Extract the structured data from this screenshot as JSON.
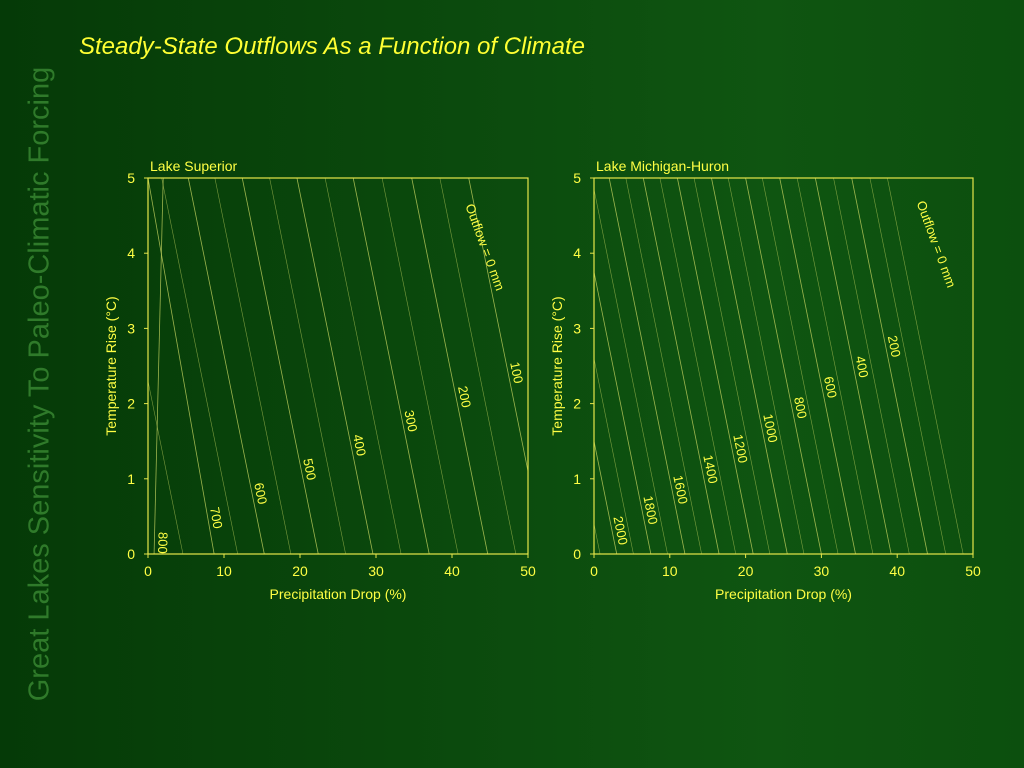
{
  "slide": {
    "title": "Steady-State Outflows As a Function of Climate",
    "side_title": "Great Lakes Sensitivity To Paleo-Climatic Forcing"
  },
  "colors": {
    "text": "#ffff44",
    "frame": "#e6e64a",
    "contour": "#b7c95a"
  },
  "chart_data": [
    {
      "type": "contour",
      "title": "Lake Superior",
      "xlabel": "Precipitation Drop (%)",
      "ylabel": "Temperature Rise (°C)",
      "xlim": [
        0,
        50
      ],
      "ylim": [
        0,
        5
      ],
      "xticks": [
        0,
        10,
        20,
        30,
        40,
        50
      ],
      "yticks": [
        0,
        1,
        2,
        3,
        4,
        5
      ],
      "contour_label": "Outflow = 0 mm",
      "contours": [
        {
          "label": "800",
          "x0": 0.8,
          "x1": 2.0
        },
        {
          "label": "700",
          "x0": 8.7,
          "x1": 0.0
        },
        {
          "label": "600",
          "x0": 15.3,
          "x1": 5.3
        },
        {
          "label": "500",
          "x0": 22.4,
          "x1": 12.4
        },
        {
          "label": "400",
          "x0": 29.6,
          "x1": 19.6
        },
        {
          "label": "300",
          "x0": 37.0,
          "x1": 27.0
        },
        {
          "label": "200",
          "x0": 44.7,
          "x1": 34.7
        },
        {
          "label": "100",
          "x0": 52.2,
          "x1": 42.2
        }
      ],
      "unlabeled_contours": [
        {
          "x0": 4.6,
          "x1": -5.4
        },
        {
          "x0": 11.8,
          "x1": 1.8
        },
        {
          "x0": 18.8,
          "x1": 8.8
        },
        {
          "x0": 26.0,
          "x1": 16.0
        },
        {
          "x0": 33.3,
          "x1": 23.3
        },
        {
          "x0": 40.8,
          "x1": 30.8
        },
        {
          "x0": 48.4,
          "x1": 38.4
        }
      ]
    },
    {
      "type": "contour",
      "title": "Lake Michigan-Huron",
      "xlabel": "Precipitation Drop (%)",
      "ylabel": "Temperature Rise (°C)",
      "xlim": [
        0,
        50
      ],
      "ylim": [
        0,
        5
      ],
      "xticks": [
        0,
        10,
        20,
        30,
        40,
        50
      ],
      "yticks": [
        0,
        1,
        2,
        3,
        4,
        5
      ],
      "contour_label": "Outflow = 0 mm",
      "contours": [
        {
          "label": "2000",
          "x0": 3.0,
          "x1": -7.0
        },
        {
          "label": "1800",
          "x0": 7.5,
          "x1": -2.5
        },
        {
          "label": "1600",
          "x0": 12.0,
          "x1": 2.0
        },
        {
          "label": "1400",
          "x0": 16.5,
          "x1": 6.5
        },
        {
          "label": "1200",
          "x0": 21.0,
          "x1": 11.0
        },
        {
          "label": "1000",
          "x0": 25.5,
          "x1": 15.5
        },
        {
          "label": "800",
          "x0": 30.0,
          "x1": 20.0
        },
        {
          "label": "600",
          "x0": 34.5,
          "x1": 24.5
        },
        {
          "label": "400",
          "x0": 39.2,
          "x1": 29.2
        },
        {
          "label": "200",
          "x0": 44.0,
          "x1": 34.0
        }
      ],
      "unlabeled_contours": [
        {
          "x0": 0.8,
          "x1": -9.2
        },
        {
          "x0": 5.2,
          "x1": -4.8
        },
        {
          "x0": 9.7,
          "x1": -0.3
        },
        {
          "x0": 14.2,
          "x1": 4.2
        },
        {
          "x0": 18.7,
          "x1": 8.7
        },
        {
          "x0": 23.2,
          "x1": 13.2
        },
        {
          "x0": 27.7,
          "x1": 17.7
        },
        {
          "x0": 32.2,
          "x1": 22.2
        },
        {
          "x0": 36.8,
          "x1": 26.8
        },
        {
          "x0": 41.6,
          "x1": 31.6
        },
        {
          "x0": 46.4,
          "x1": 36.4
        },
        {
          "x0": 48.7,
          "x1": 38.7
        }
      ]
    }
  ]
}
